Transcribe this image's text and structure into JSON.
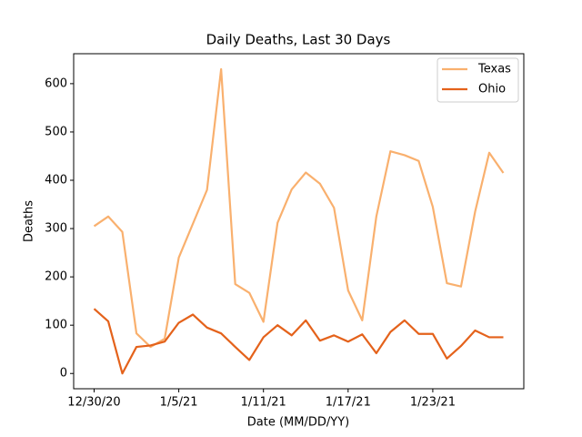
{
  "chart_data": {
    "type": "line",
    "title": "Daily Deaths, Last 30 Days",
    "xlabel": "Date (MM/DD/YY)",
    "ylabel": "Deaths",
    "x": [
      "12/30/20",
      "12/31/20",
      "1/1/21",
      "1/2/21",
      "1/3/21",
      "1/4/21",
      "1/5/21",
      "1/6/21",
      "1/7/21",
      "1/8/21",
      "1/9/21",
      "1/10/21",
      "1/11/21",
      "1/12/21",
      "1/13/21",
      "1/14/21",
      "1/15/21",
      "1/16/21",
      "1/17/21",
      "1/18/21",
      "1/19/21",
      "1/20/21",
      "1/21/21",
      "1/22/21",
      "1/23/21",
      "1/24/21",
      "1/25/21",
      "1/26/21",
      "1/27/21",
      "1/28/21"
    ],
    "xticks": [
      "12/30/20",
      "1/5/21",
      "1/11/21",
      "1/17/21",
      "1/23/21"
    ],
    "series": [
      {
        "name": "Texas",
        "color": "#f9b06e",
        "values": [
          305,
          325,
          293,
          83,
          55,
          72,
          240,
          310,
          380,
          630,
          185,
          167,
          107,
          312,
          381,
          416,
          393,
          343,
          172,
          110,
          325,
          460,
          452,
          440,
          345,
          187,
          180,
          335,
          457,
          415
        ]
      },
      {
        "name": "Ohio",
        "color": "#e4621b",
        "values": [
          134,
          108,
          0,
          55,
          58,
          66,
          105,
          122,
          95,
          83,
          55,
          28,
          75,
          100,
          79,
          110,
          68,
          79,
          66,
          81,
          42,
          86,
          110,
          82,
          82,
          31,
          57,
          89,
          75,
          75
        ]
      }
    ],
    "ylim": [
      -31.6,
      662
    ],
    "yticks": [
      0,
      100,
      200,
      300,
      400,
      500,
      600
    ],
    "grid": false,
    "legend": "upper right"
  }
}
